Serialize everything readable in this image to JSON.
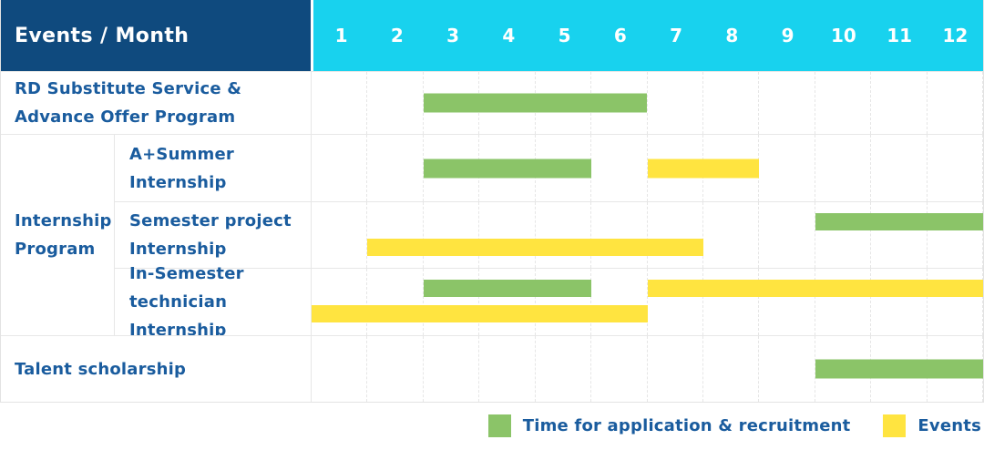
{
  "header": {
    "title": "Events / Month"
  },
  "colors": {
    "header_bg": "#0f4a7e",
    "months_bg": "#18d2ee",
    "label_text": "#1a5c9e",
    "grid_line": "#e7e7e7",
    "application": "#8bc468",
    "events": "#ffe440"
  },
  "legend": [
    {
      "label": "Time for application & recruitment",
      "series": "application"
    },
    {
      "label": "Events",
      "series": "events"
    }
  ],
  "chart_data": {
    "type": "table",
    "subtype": "gantt",
    "unit": "month",
    "x_categories": [
      "1",
      "2",
      "3",
      "4",
      "5",
      "6",
      "7",
      "8",
      "9",
      "10",
      "11",
      "12"
    ],
    "x_range": [
      1,
      12
    ],
    "grid": true,
    "legend_position": "bottom-right",
    "series_names": {
      "application": "Time for application & recruitment",
      "events": "Events"
    },
    "rows": [
      {
        "group": "",
        "label": "RD Substitute Service &\nAdvance Offer Program",
        "bars": [
          {
            "series": "application",
            "start": 3,
            "end": 6,
            "line": 0
          }
        ]
      },
      {
        "group": "Internship\nProgram",
        "label": "A+Summer\nInternship",
        "bars": [
          {
            "series": "application",
            "start": 3,
            "end": 5,
            "line": 0
          },
          {
            "series": "events",
            "start": 7,
            "end": 8,
            "line": 0
          }
        ]
      },
      {
        "group": "Internship\nProgram",
        "label": "Semester project\nInternship",
        "bars": [
          {
            "series": "application",
            "start": 10,
            "end": 12,
            "line": 0
          },
          {
            "series": "events",
            "start": 2,
            "end": 7,
            "line": 1
          }
        ]
      },
      {
        "group": "Internship\nProgram",
        "label": "In-Semester\ntechnician Internship",
        "bars": [
          {
            "series": "application",
            "start": 3,
            "end": 5,
            "line": 0
          },
          {
            "series": "events",
            "start": 7,
            "end": 12,
            "line": 0
          },
          {
            "series": "events",
            "start": 1,
            "end": 6,
            "line": 1
          }
        ]
      },
      {
        "group": "",
        "label": "Talent scholarship",
        "bars": [
          {
            "series": "application",
            "start": 10,
            "end": 12,
            "line": 0
          }
        ]
      }
    ]
  }
}
